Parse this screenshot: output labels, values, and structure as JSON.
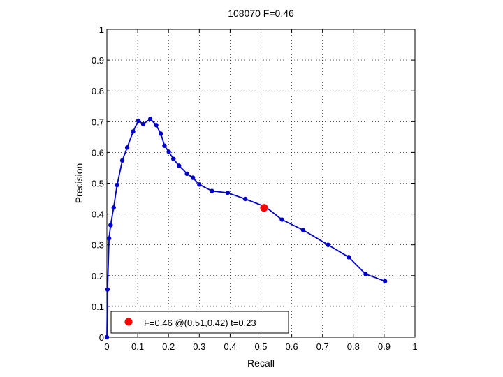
{
  "chart_data": {
    "type": "line",
    "title": "108070 F=0.46",
    "xlabel": "Recall",
    "ylabel": "Precision",
    "xlim": [
      0,
      1
    ],
    "ylim": [
      0,
      1
    ],
    "grid": true,
    "xticks": [
      "0",
      "0.1",
      "0.2",
      "0.3",
      "0.4",
      "0.5",
      "0.6",
      "0.7",
      "0.8",
      "0.9",
      "1"
    ],
    "yticks": [
      "0",
      "0.1",
      "0.2",
      "0.3",
      "0.4",
      "0.5",
      "0.6",
      "0.7",
      "0.8",
      "0.9",
      "1"
    ],
    "series": [
      {
        "color": "#0000cc",
        "x": [
          0.0,
          0.002,
          0.007,
          0.012,
          0.022,
          0.033,
          0.05,
          0.066,
          0.085,
          0.102,
          0.118,
          0.141,
          0.16,
          0.175,
          0.187,
          0.201,
          0.216,
          0.234,
          0.26,
          0.279,
          0.3,
          0.341,
          0.392,
          0.449,
          0.514,
          0.568,
          0.637,
          0.718,
          0.785,
          0.84,
          0.903
        ],
        "y": [
          0.0,
          0.155,
          0.321,
          0.364,
          0.421,
          0.494,
          0.574,
          0.616,
          0.668,
          0.703,
          0.692,
          0.709,
          0.689,
          0.661,
          0.622,
          0.602,
          0.579,
          0.557,
          0.531,
          0.518,
          0.496,
          0.475,
          0.469,
          0.449,
          0.424,
          0.382,
          0.348,
          0.3,
          0.26,
          0.205,
          0.182
        ]
      }
    ],
    "highlight": {
      "x": 0.51,
      "y": 0.42,
      "color": "#ff0000"
    },
    "legend": {
      "position": "bottom-left",
      "text": "F=0.46 @(0.51,0.42) t=0.23",
      "marker_color": "#ff0000"
    }
  }
}
